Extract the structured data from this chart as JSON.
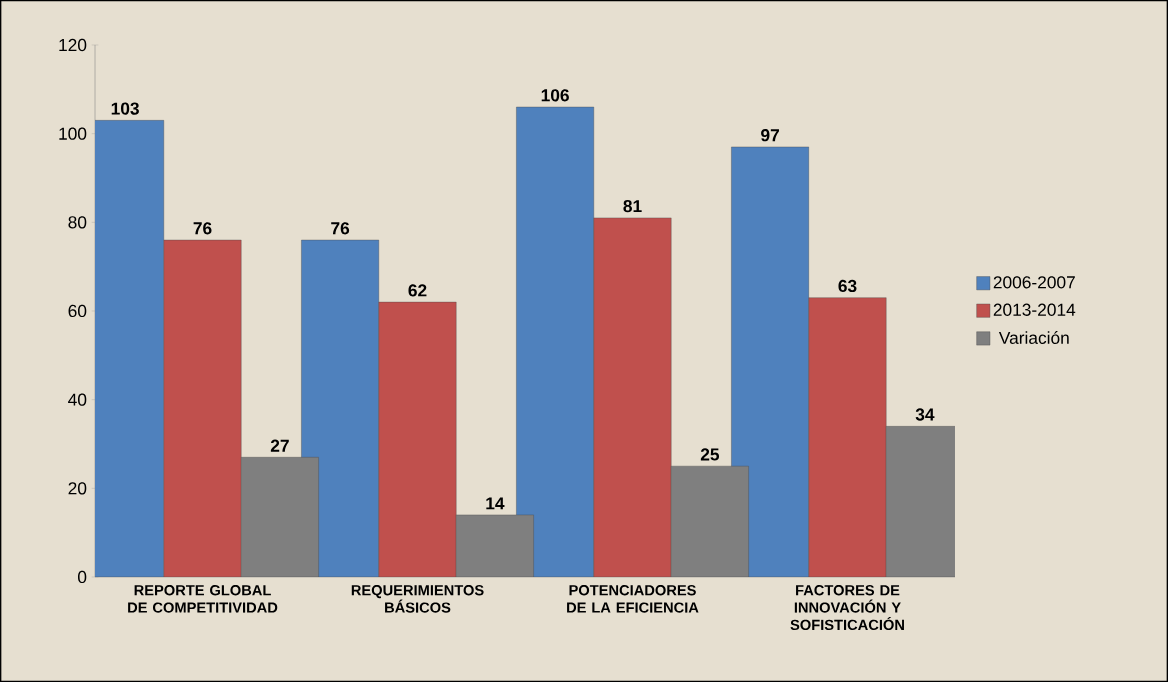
{
  "chart_data": {
    "type": "bar",
    "categories": [
      "REPORTE GLOBAL DE COMPETITIVIDAD",
      "REQUERIMIENTOS BÁSICOS",
      "POTENCIADORES DE LA EFICIENCIA",
      "FACTORES DE INNOVACIÓN Y SOFISTICACIÓN"
    ],
    "series": [
      {
        "name": "2006-2007",
        "color": "#4f81bd",
        "values": [
          103,
          76,
          106,
          97
        ]
      },
      {
        "name": "2013-2014",
        "color": "#c0504d",
        "values": [
          76,
          62,
          81,
          63
        ]
      },
      {
        "name": "Variación",
        "color": "#7f7f7f",
        "values": [
          27,
          14,
          25,
          34
        ]
      }
    ],
    "ylim": [
      0,
      120
    ],
    "yticks": [
      0,
      20,
      40,
      60,
      80,
      100,
      120
    ],
    "data_labels": true,
    "legend": "right"
  }
}
